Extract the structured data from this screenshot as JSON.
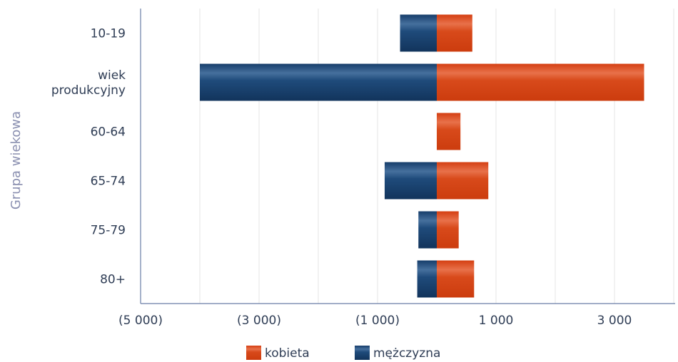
{
  "chart_data": {
    "type": "bar",
    "orientation": "horizontal",
    "stacked": "diverging",
    "ylabel": "Grupa wiekowa",
    "xlabel": "",
    "categories": [
      "10-19",
      "wiek produkcyjny",
      "60-64",
      "65-74",
      "75-79",
      "80+"
    ],
    "category_lines": [
      [
        "10-19"
      ],
      [
        "wiek",
        "produkcyjny"
      ],
      [
        "60-64"
      ],
      [
        "65-74"
      ],
      [
        "75-79"
      ],
      [
        "80+"
      ]
    ],
    "xlim": [
      -5000,
      4000
    ],
    "xticks": [
      -5000,
      -3000,
      -1000,
      1000,
      3000
    ],
    "xtick_labels": [
      "(5 000)",
      "(3 000)",
      "(1 000)",
      "1 000",
      "3 000"
    ],
    "gridlines": [
      -5000,
      -4000,
      -3000,
      -2000,
      -1000,
      1000,
      2000,
      3000,
      4000
    ],
    "grid": true,
    "series": [
      {
        "name": "kobieta",
        "color": "#d84a1b",
        "values": [
          600,
          3500,
          400,
          870,
          370,
          630
        ]
      },
      {
        "name": "mężczyzna",
        "color": "#1d4a7a",
        "values": [
          -620,
          -4000,
          0,
          -880,
          -310,
          -330
        ]
      }
    ],
    "legend_position": "bottom"
  }
}
